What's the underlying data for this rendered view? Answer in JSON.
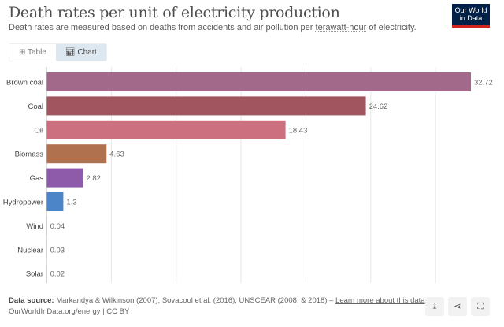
{
  "header": {
    "title": "Death rates per unit of electricity production",
    "subtitle_pre": "Death rates are measured based on deaths from accidents and air pollution per ",
    "subtitle_link": "terawatt-hour",
    "subtitle_post": " of electricity.",
    "logo": "Our World in Data"
  },
  "tabs": [
    {
      "label": "Table",
      "icon": "table-icon"
    },
    {
      "label": "Chart",
      "icon": "chart-icon",
      "active": true
    }
  ],
  "chart_data": {
    "type": "bar",
    "orientation": "horizontal",
    "title": "",
    "xlabel": "",
    "ylabel": "",
    "categories": [
      "Brown coal",
      "Coal",
      "Oil",
      "Biomass",
      "Gas",
      "Hydropower",
      "Wind",
      "Nuclear",
      "Solar"
    ],
    "values": [
      32.72,
      24.62,
      18.43,
      4.63,
      2.82,
      1.3,
      0.04,
      0.03,
      0.02
    ],
    "value_labels": [
      "32.72",
      "24.62",
      "18.43",
      "4.63",
      "2.82",
      "1.3",
      "0.04",
      "0.03",
      "0.02"
    ],
    "colors": [
      "#a2698a",
      "#a0555f",
      "#cc6f7e",
      "#b0714f",
      "#8e5aaa",
      "#4c86c9",
      "#999999",
      "#999999",
      "#999999"
    ],
    "xlim": [
      0,
      33
    ],
    "grid": true,
    "gridlines": [
      5,
      10,
      15,
      20,
      25,
      30
    ]
  },
  "footer": {
    "source_label": "Data source:",
    "source_text": " Markandya & Wilkinson (2007); Sovacool et al. (2016); UNSCEAR (2008; & 2018) – ",
    "learn_more": "Learn more about this data",
    "credit": "OurWorldInData.org/energy | CC BY"
  },
  "actions": [
    {
      "icon": "download-icon",
      "glyph": "⤓"
    },
    {
      "icon": "share-icon",
      "glyph": "⋖"
    },
    {
      "icon": "fullscreen-icon",
      "glyph": "⛶"
    }
  ]
}
